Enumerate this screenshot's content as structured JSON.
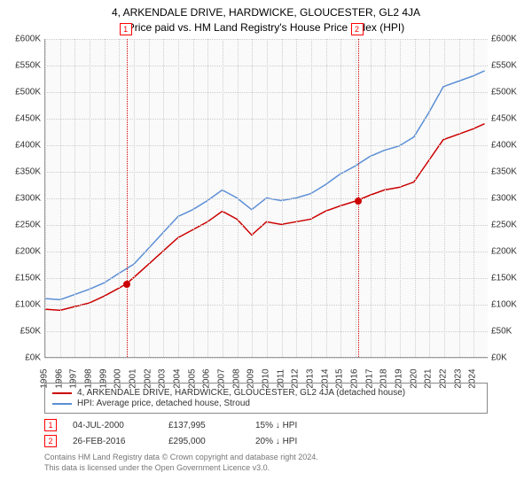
{
  "title_line1": "4, ARKENDALE DRIVE, HARDWICKE, GLOUCESTER, GL2 4JA",
  "title_line2": "Price paid vs. HM Land Registry's House Price Index (HPI)",
  "chart": {
    "type": "line",
    "background_color": "#fafafa",
    "grid_color": "#cccccc",
    "axis_color": "#999999",
    "ylim": [
      0,
      600000
    ],
    "ytick_step": 50000,
    "yticks": [
      "£0K",
      "£50K",
      "£100K",
      "£150K",
      "£200K",
      "£250K",
      "£300K",
      "£350K",
      "£400K",
      "£450K",
      "£500K",
      "£550K",
      "£600K"
    ],
    "xlim": [
      1995,
      2025
    ],
    "xticks": [
      1995,
      1996,
      1997,
      1998,
      1999,
      2000,
      2001,
      2002,
      2003,
      2004,
      2005,
      2006,
      2007,
      2008,
      2009,
      2010,
      2011,
      2012,
      2013,
      2014,
      2015,
      2016,
      2017,
      2018,
      2019,
      2020,
      2021,
      2022,
      2023,
      2024
    ],
    "title_fontsize": 12,
    "label_fontsize": 10,
    "series": [
      {
        "name": "property",
        "label": "4, ARKENDALE DRIVE, HARDWICKE, GLOUCESTER, GL2 4JA (detached house)",
        "color": "#cc0000",
        "line_width": 1.5,
        "data": [
          [
            1995,
            90000
          ],
          [
            1996,
            88000
          ],
          [
            1997,
            95000
          ],
          [
            1998,
            102000
          ],
          [
            1999,
            115000
          ],
          [
            2000,
            130000
          ],
          [
            2000.5,
            137995
          ],
          [
            2001,
            150000
          ],
          [
            2002,
            175000
          ],
          [
            2003,
            200000
          ],
          [
            2004,
            225000
          ],
          [
            2005,
            240000
          ],
          [
            2006,
            255000
          ],
          [
            2007,
            275000
          ],
          [
            2008,
            260000
          ],
          [
            2009,
            230000
          ],
          [
            2010,
            255000
          ],
          [
            2011,
            250000
          ],
          [
            2012,
            255000
          ],
          [
            2013,
            260000
          ],
          [
            2014,
            275000
          ],
          [
            2015,
            285000
          ],
          [
            2016.15,
            295000
          ],
          [
            2017,
            305000
          ],
          [
            2018,
            315000
          ],
          [
            2019,
            320000
          ],
          [
            2020,
            330000
          ],
          [
            2021,
            370000
          ],
          [
            2022,
            410000
          ],
          [
            2023,
            420000
          ],
          [
            2024,
            430000
          ],
          [
            2024.8,
            440000
          ]
        ]
      },
      {
        "name": "hpi",
        "label": "HPI: Average price, detached house, Stroud",
        "color": "#5b8fd6",
        "line_width": 1.5,
        "data": [
          [
            1995,
            110000
          ],
          [
            1996,
            108000
          ],
          [
            1997,
            118000
          ],
          [
            1998,
            128000
          ],
          [
            1999,
            140000
          ],
          [
            2000,
            158000
          ],
          [
            2001,
            175000
          ],
          [
            2002,
            205000
          ],
          [
            2003,
            235000
          ],
          [
            2004,
            265000
          ],
          [
            2005,
            278000
          ],
          [
            2006,
            295000
          ],
          [
            2007,
            315000
          ],
          [
            2008,
            300000
          ],
          [
            2009,
            278000
          ],
          [
            2010,
            300000
          ],
          [
            2011,
            295000
          ],
          [
            2012,
            300000
          ],
          [
            2013,
            308000
          ],
          [
            2014,
            325000
          ],
          [
            2015,
            345000
          ],
          [
            2016,
            360000
          ],
          [
            2017,
            378000
          ],
          [
            2018,
            390000
          ],
          [
            2019,
            398000
          ],
          [
            2020,
            415000
          ],
          [
            2021,
            460000
          ],
          [
            2022,
            510000
          ],
          [
            2023,
            520000
          ],
          [
            2024,
            530000
          ],
          [
            2024.8,
            540000
          ]
        ]
      }
    ],
    "markers": [
      {
        "n": "1",
        "x": 2000.5,
        "y": 137995
      },
      {
        "n": "2",
        "x": 2016.15,
        "y": 295000
      }
    ]
  },
  "legend": {
    "series1_label": "4, ARKENDALE DRIVE, HARDWICKE, GLOUCESTER, GL2 4JA (detached house)",
    "series2_label": "HPI: Average price, detached house, Stroud"
  },
  "transactions": [
    {
      "n": "1",
      "date": "04-JUL-2000",
      "price": "£137,995",
      "delta": "15% ↓ HPI"
    },
    {
      "n": "2",
      "date": "26-FEB-2016",
      "price": "£295,000",
      "delta": "20% ↓ HPI"
    }
  ],
  "footnote_line1": "Contains HM Land Registry data © Crown copyright and database right 2024.",
  "footnote_line2": "This data is licensed under the Open Government Licence v3.0."
}
